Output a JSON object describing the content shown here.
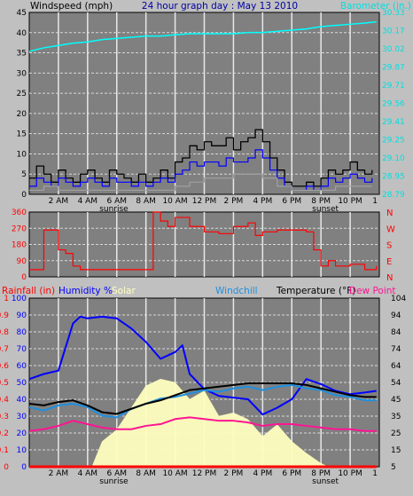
{
  "colors": {
    "background": "#c0c0c0",
    "plot_bg": "#808080",
    "grid": "#d8d8d8",
    "hour_line": "#e8e8e8",
    "wind_gust": "#000000",
    "wind_avg": "#0000ff",
    "wind_low": "#a0a0a0",
    "barometer": "#00ffff",
    "wind_dir": "#ff0000",
    "rain": "#ff0000",
    "humidity": "#0000ff",
    "solar": "#ffffc0",
    "windchill": "#1f8fdf",
    "temperature": "#000000",
    "dew_point": "#ff1493"
  },
  "chart_data": [
    {
      "type": "line",
      "title": "24 hour graph day : May 13 2010",
      "ylabel_left": "Windspeed (mph)",
      "ylabel_right": "Barometer (in.)",
      "ylim": [
        0,
        45
      ],
      "y_ticks": [
        "0",
        "5",
        "10",
        "15",
        "20",
        "25",
        "30",
        "35",
        "40",
        "45"
      ],
      "right_ticks": [
        "28.79",
        "28.95",
        "29.10",
        "29.25",
        "29.41",
        "29.56",
        "29.71",
        "29.87",
        "30.02",
        "30.17",
        "30.33"
      ],
      "x_ticks": [
        "2 AM",
        "4 AM",
        "6 AM",
        "8 AM",
        "10 AM",
        "12 PM",
        "2 PM",
        "4 PM",
        "6 PM",
        "8 PM",
        "10 PM",
        "1"
      ],
      "sunrise_label": "sunrise",
      "sunset_label": "sunset",
      "series": [
        {
          "key": "wind_gust",
          "x": [
            0,
            0.5,
            1,
            1.5,
            2,
            2.5,
            3,
            3.5,
            4,
            4.5,
            5,
            5.5,
            6,
            6.5,
            7,
            7.5,
            8,
            8.5,
            9,
            9.5,
            10,
            10.5,
            11,
            11.5,
            12,
            12.5,
            13,
            13.5,
            14,
            14.5,
            15,
            15.5,
            16,
            16.5,
            17,
            17.5,
            18,
            18.5,
            19,
            19.5,
            20,
            20.5,
            21,
            21.5,
            22,
            22.5,
            23,
            23.5
          ],
          "values": [
            4,
            7,
            5,
            3,
            6,
            4,
            3,
            5,
            6,
            4,
            3,
            6,
            5,
            4,
            3,
            5,
            3,
            4,
            6,
            4,
            8,
            9,
            12,
            11,
            13,
            12,
            12,
            14,
            11,
            13,
            14,
            16,
            13,
            9,
            6,
            3,
            2,
            2,
            3,
            2,
            4,
            6,
            5,
            6,
            8,
            6,
            5,
            6
          ]
        },
        {
          "key": "wind_avg",
          "x": [
            0,
            0.5,
            1,
            1.5,
            2,
            2.5,
            3,
            3.5,
            4,
            4.5,
            5,
            5.5,
            6,
            6.5,
            7,
            7.5,
            8,
            8.5,
            9,
            9.5,
            10,
            10.5,
            11,
            11.5,
            12,
            12.5,
            13,
            13.5,
            14,
            14.5,
            15,
            15.5,
            16,
            16.5,
            17,
            17.5,
            18,
            18.5,
            19,
            19.5,
            20,
            20.5,
            21,
            21.5,
            22,
            22.5,
            23,
            23.5
          ],
          "values": [
            2,
            4,
            3,
            2,
            4,
            3,
            2,
            3,
            4,
            3,
            2,
            4,
            3,
            3,
            2,
            3,
            2,
            3,
            4,
            3,
            5,
            6,
            8,
            7,
            8,
            8,
            7,
            9,
            8,
            8,
            9,
            11,
            9,
            6,
            4,
            2,
            1,
            1,
            2,
            1,
            2,
            4,
            3,
            4,
            5,
            4,
            3,
            4
          ]
        },
        {
          "key": "wind_low",
          "x": [
            0,
            1,
            2,
            3,
            4,
            5,
            6,
            7,
            8,
            9,
            10,
            11,
            12,
            13,
            14,
            15,
            16,
            17,
            18,
            19,
            20,
            21,
            22,
            23,
            23.5
          ],
          "values": [
            1,
            2,
            1,
            1,
            1,
            1,
            1,
            1,
            1,
            1,
            2,
            3,
            4,
            4,
            5,
            5,
            4,
            2,
            1,
            1,
            1,
            2,
            2,
            2,
            2
          ]
        },
        {
          "key": "barometer",
          "axis": "right",
          "x": [
            0,
            1,
            2,
            3,
            4,
            5,
            6,
            7,
            8,
            9,
            10,
            11,
            12,
            13,
            14,
            15,
            16,
            17,
            18,
            19,
            20,
            21,
            22,
            23,
            23.8
          ],
          "values": [
            30.0,
            30.03,
            30.05,
            30.07,
            30.08,
            30.1,
            30.11,
            30.12,
            30.13,
            30.13,
            30.14,
            30.15,
            30.15,
            30.15,
            30.15,
            30.16,
            30.16,
            30.17,
            30.18,
            30.19,
            30.21,
            30.22,
            30.23,
            30.24,
            30.25
          ]
        }
      ]
    },
    {
      "type": "line",
      "ylabel": "Wind direction",
      "ylim": [
        0,
        360
      ],
      "y_ticks": [
        "0",
        "90",
        "180",
        "270",
        "360"
      ],
      "compass_labels": [
        "N",
        "W",
        "S",
        "E",
        "N"
      ],
      "series": [
        {
          "key": "wind_dir",
          "x": [
            0,
            0.5,
            1,
            1.5,
            2,
            2.5,
            3,
            3.5,
            4,
            5,
            6,
            7,
            8,
            8.5,
            9,
            9.5,
            10,
            11,
            12,
            13,
            14,
            15,
            15.5,
            16,
            17,
            18,
            19,
            19.5,
            20,
            20.5,
            21,
            22,
            23,
            23.8
          ],
          "values": [
            40,
            40,
            260,
            260,
            150,
            130,
            60,
            40,
            40,
            40,
            40,
            40,
            40,
            360,
            310,
            280,
            330,
            280,
            250,
            240,
            280,
            300,
            230,
            250,
            260,
            260,
            250,
            150,
            60,
            90,
            60,
            70,
            40,
            60
          ]
        }
      ]
    },
    {
      "type": "line",
      "ylabel_rain": "Rainfall (in)",
      "ylabel_humidity": "Humidity %",
      "ylabel_solar": "Solar",
      "ylabel_windchill": "Windchill",
      "ylabel_temp": "Temperature (°F)",
      "ylabel_dew": "Dew Point",
      "humidity_ticks": [
        "0",
        "10",
        "20",
        "30",
        "40",
        "50",
        "60",
        "70",
        "80",
        "90",
        "100"
      ],
      "rain_ticks": [
        "0",
        "0.1",
        "0.2",
        "0.3",
        "0.4",
        "0.5",
        "0.6",
        "0.7",
        "0.8",
        "0.9",
        "1"
      ],
      "temp_ticks": [
        "5",
        "15",
        "25",
        "35",
        "45",
        "54",
        "64",
        "74",
        "84",
        "94",
        "104"
      ],
      "series": [
        {
          "key": "humidity",
          "axis": "humidity",
          "x": [
            0,
            1,
            2,
            3,
            3.5,
            4,
            5,
            6,
            7,
            8,
            9,
            10,
            10.5,
            11,
            12,
            13,
            14,
            15,
            16,
            17,
            18,
            19,
            20,
            21,
            22,
            23,
            23.8
          ],
          "values": [
            52,
            55,
            57,
            85,
            89,
            88,
            89,
            88,
            82,
            74,
            64,
            68,
            72,
            55,
            46,
            42,
            41,
            40,
            31,
            35,
            40,
            52,
            49,
            45,
            43,
            44,
            45
          ]
        },
        {
          "key": "solar",
          "axis": "humidity",
          "x": [
            4.3,
            5,
            6,
            7,
            8,
            9,
            10,
            11,
            12,
            13,
            14,
            15,
            16,
            17,
            18,
            19,
            20,
            20.5
          ],
          "values": [
            0,
            15,
            22,
            35,
            48,
            52,
            50,
            40,
            45,
            30,
            32,
            28,
            18,
            25,
            15,
            8,
            2,
            0
          ]
        },
        {
          "key": "windchill",
          "axis": "temp",
          "x": [
            0,
            1,
            2,
            3,
            4,
            5,
            6,
            7,
            8,
            9,
            10,
            11,
            12,
            13,
            14,
            15,
            16,
            17,
            18,
            19,
            20,
            21,
            22,
            23,
            23.8
          ],
          "values": [
            40,
            38,
            41,
            42,
            40,
            35,
            34,
            39,
            42,
            45,
            46,
            48,
            50,
            49,
            51,
            52,
            50,
            52,
            53,
            51,
            50,
            47,
            46,
            44,
            44
          ]
        },
        {
          "key": "temperature",
          "axis": "temp",
          "x": [
            0,
            1,
            2,
            3,
            4,
            5,
            6,
            7,
            8,
            9,
            10,
            11,
            12,
            13,
            14,
            15,
            16,
            17,
            18,
            19,
            20,
            21,
            22,
            23,
            23.8
          ],
          "values": [
            42,
            41,
            43,
            44,
            41,
            37,
            36,
            39,
            42,
            44,
            47,
            50,
            51,
            52,
            53,
            54,
            54,
            54,
            54,
            53,
            51,
            49,
            47,
            46,
            46
          ]
        },
        {
          "key": "dew_point",
          "axis": "temp",
          "x": [
            0,
            1,
            2,
            3,
            4,
            5,
            6,
            7,
            8,
            9,
            10,
            11,
            12,
            13,
            14,
            15,
            16,
            17,
            18,
            19,
            20,
            21,
            22,
            23,
            23.8
          ],
          "values": [
            26,
            27,
            29,
            32,
            30,
            28,
            27,
            27,
            29,
            30,
            33,
            34,
            33,
            32,
            32,
            31,
            29,
            30,
            30,
            29,
            28,
            27,
            27,
            26,
            26
          ]
        },
        {
          "key": "rain",
          "axis": "rain",
          "x": [
            0,
            23.8
          ],
          "values": [
            0,
            0
          ]
        }
      ]
    }
  ]
}
